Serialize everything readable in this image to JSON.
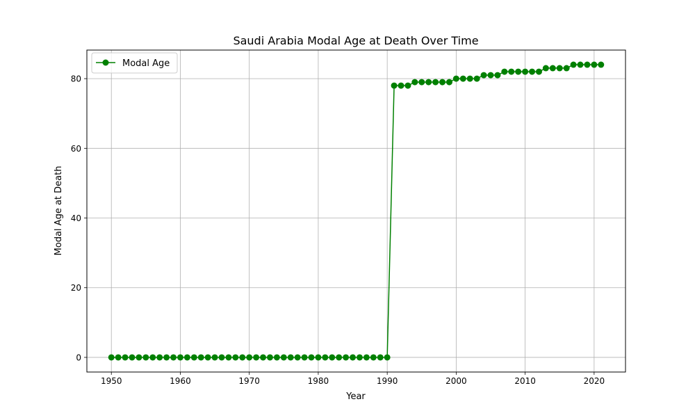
{
  "chart_data": {
    "type": "line",
    "title": "Saudi Arabia Modal Age at Death Over Time",
    "xlabel": "Year",
    "ylabel": "Modal Age at Death",
    "xlim": [
      1946.45,
      2024.55
    ],
    "ylim": [
      -4.2,
      88.2
    ],
    "x_ticks": [
      1950,
      1960,
      1970,
      1980,
      1990,
      2000,
      2010,
      2020
    ],
    "y_ticks": [
      0,
      20,
      40,
      60,
      80
    ],
    "grid": true,
    "legend_position": "top-left",
    "series": [
      {
        "name": "Modal Age",
        "color": "#008000",
        "marker": "circle",
        "x": [
          1950,
          1951,
          1952,
          1953,
          1954,
          1955,
          1956,
          1957,
          1958,
          1959,
          1960,
          1961,
          1962,
          1963,
          1964,
          1965,
          1966,
          1967,
          1968,
          1969,
          1970,
          1971,
          1972,
          1973,
          1974,
          1975,
          1976,
          1977,
          1978,
          1979,
          1980,
          1981,
          1982,
          1983,
          1984,
          1985,
          1986,
          1987,
          1988,
          1989,
          1990,
          1991,
          1992,
          1993,
          1994,
          1995,
          1996,
          1997,
          1998,
          1999,
          2000,
          2001,
          2002,
          2003,
          2004,
          2005,
          2006,
          2007,
          2008,
          2009,
          2010,
          2011,
          2012,
          2013,
          2014,
          2015,
          2016,
          2017,
          2018,
          2019,
          2020,
          2021
        ],
        "values": [
          0,
          0,
          0,
          0,
          0,
          0,
          0,
          0,
          0,
          0,
          0,
          0,
          0,
          0,
          0,
          0,
          0,
          0,
          0,
          0,
          0,
          0,
          0,
          0,
          0,
          0,
          0,
          0,
          0,
          0,
          0,
          0,
          0,
          0,
          0,
          0,
          0,
          0,
          0,
          0,
          0,
          78,
          78,
          78,
          79,
          79,
          79,
          79,
          79,
          79,
          80,
          80,
          80,
          80,
          81,
          81,
          81,
          82,
          82,
          82,
          82,
          82,
          82,
          83,
          83,
          83,
          83,
          84,
          84,
          84,
          84,
          84
        ]
      }
    ]
  }
}
